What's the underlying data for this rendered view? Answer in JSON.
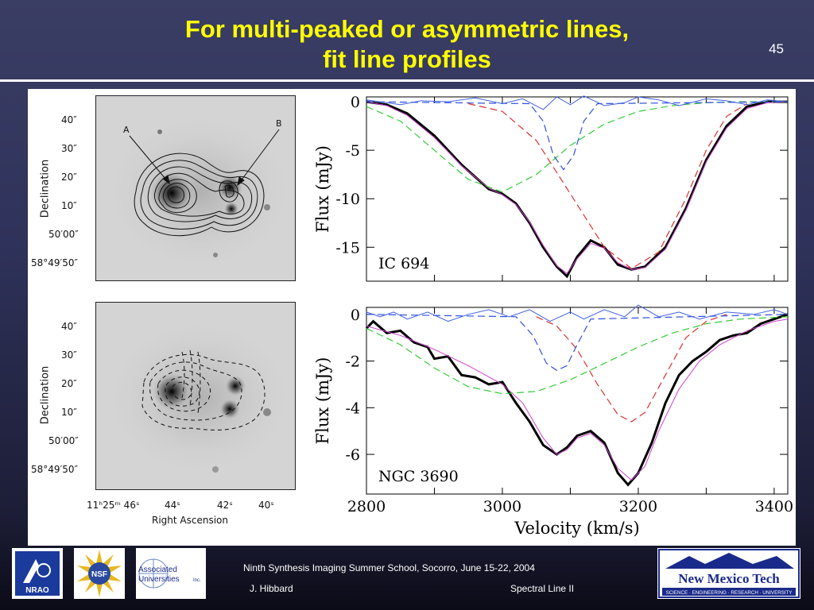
{
  "slide": {
    "title_line1": "For multi-peaked or asymmetric lines,",
    "title_line2": "fit line profiles",
    "slide_number": "45"
  },
  "images": {
    "top": {
      "dec_ticks": [
        "40″",
        "30″",
        "20″",
        "10″",
        "50′00″",
        "58°49′50″"
      ],
      "dec_label": "Declination",
      "marker_a": "A",
      "marker_b": "B"
    },
    "bottom": {
      "dec_ticks": [
        "40″",
        "30″",
        "20″",
        "10″",
        "50′00″",
        "58°49′50″"
      ],
      "dec_label": "Declination",
      "ra_ticks": [
        "11ʰ25ᵐ 46ˢ",
        "44ˢ",
        "42ˢ",
        "40ˢ"
      ],
      "ra_label": "Right Ascension"
    }
  },
  "chart_data": [
    {
      "type": "line",
      "label": "IC 694",
      "ylabel": "Flux (mJy)",
      "xlim": [
        2800,
        3420
      ],
      "ylim": [
        -18.5,
        0.5
      ],
      "yticks": [
        "0",
        "-5",
        "-10",
        "-15"
      ],
      "ytick_values": [
        0,
        -5,
        -10,
        -15
      ],
      "series": [
        {
          "color": "#000000",
          "style": "solid-thick",
          "x": [
            2800,
            2830,
            2860,
            2900,
            2940,
            2980,
            3000,
            3020,
            3040,
            3060,
            3080,
            3095,
            3110,
            3130,
            3150,
            3170,
            3190,
            3210,
            3240,
            3270,
            3300,
            3330,
            3360,
            3390,
            3420
          ],
          "y": [
            0,
            -0.3,
            -1.2,
            -3.5,
            -6.5,
            -9.0,
            -9.5,
            -10.5,
            -12.5,
            -15.0,
            -17.0,
            -18.0,
            -16.0,
            -14.3,
            -15.0,
            -16.8,
            -17.3,
            -17.0,
            -15.0,
            -11.0,
            -6.0,
            -2.5,
            -0.5,
            0,
            0
          ]
        },
        {
          "color": "#cc44cc",
          "style": "solid-thin",
          "x": [
            2800,
            2830,
            2860,
            2900,
            2940,
            2980,
            3000,
            3020,
            3040,
            3060,
            3080,
            3095,
            3110,
            3130,
            3150,
            3170,
            3190,
            3210,
            3240,
            3270,
            3300,
            3330,
            3360,
            3390,
            3420
          ],
          "y": [
            0,
            -0.4,
            -1.4,
            -3.7,
            -6.6,
            -8.9,
            -9.6,
            -10.6,
            -12.4,
            -14.8,
            -16.9,
            -17.7,
            -16.2,
            -14.6,
            -15.1,
            -16.6,
            -17.3,
            -17.1,
            -15.2,
            -11.2,
            -6.2,
            -2.7,
            -0.7,
            -0.1,
            0
          ]
        },
        {
          "color": "#33cc33",
          "style": "dashed",
          "x": [
            2800,
            2850,
            2900,
            2950,
            3000,
            3050,
            3100,
            3150,
            3200,
            3250,
            3300,
            3350,
            3420
          ],
          "y": [
            -0.5,
            -2.0,
            -5.0,
            -8.0,
            -9.3,
            -7.5,
            -4.5,
            -2.3,
            -1.0,
            -0.4,
            -0.1,
            0,
            0
          ]
        },
        {
          "color": "#e03030",
          "style": "dashed",
          "x": [
            2950,
            3000,
            3050,
            3100,
            3150,
            3190,
            3230,
            3270,
            3300,
            3330,
            3360
          ],
          "y": [
            -0.2,
            -1.0,
            -4.0,
            -9.5,
            -15.0,
            -17.2,
            -15.5,
            -10.0,
            -5.0,
            -1.5,
            -0.2
          ]
        },
        {
          "color": "#3050e0",
          "style": "dashed",
          "x": [
            2800,
            3040,
            3060,
            3075,
            3090,
            3105,
            3120,
            3140,
            3420
          ],
          "y": [
            0,
            -0.2,
            -2.0,
            -5.5,
            -7.0,
            -5.5,
            -2.0,
            -0.2,
            0
          ]
        },
        {
          "color": "#4060e0",
          "style": "solid-thin",
          "x": [
            2800,
            2820,
            2850,
            2880,
            2920,
            2960,
            3000,
            3030,
            3060,
            3080,
            3100,
            3120,
            3150,
            3180,
            3200,
            3230,
            3260,
            3300,
            3330,
            3360,
            3390,
            3420
          ],
          "y": [
            0.2,
            0,
            -0.3,
            0.1,
            0,
            0.4,
            -0.2,
            0.3,
            -0.8,
            0.5,
            -0.3,
            0.6,
            -0.4,
            -0.1,
            0.5,
            0.2,
            -0.4,
            0.3,
            0.1,
            -0.3,
            0.2,
            0
          ]
        }
      ]
    },
    {
      "type": "line",
      "label": "NGC 3690",
      "ylabel": "Flux (mJy)",
      "xlabel": "Velocity (km/s)",
      "xlim": [
        2800,
        3420
      ],
      "ylim": [
        -7.7,
        0.3
      ],
      "xticks": [
        "2800",
        "3000",
        "3200",
        "3400"
      ],
      "xtick_values": [
        2800,
        3000,
        3200,
        3400
      ],
      "yticks": [
        "0",
        "-2",
        "-4",
        "-6"
      ],
      "ytick_values": [
        0,
        -2,
        -4,
        -6
      ],
      "series": [
        {
          "color": "#000000",
          "style": "solid-thick",
          "x": [
            2800,
            2810,
            2830,
            2850,
            2870,
            2890,
            2900,
            2920,
            2940,
            2960,
            2980,
            3000,
            3020,
            3040,
            3060,
            3080,
            3095,
            3110,
            3130,
            3150,
            3170,
            3185,
            3200,
            3220,
            3240,
            3260,
            3280,
            3300,
            3320,
            3340,
            3360,
            3380,
            3400,
            3420
          ],
          "y": [
            -0.6,
            -0.3,
            -0.8,
            -0.7,
            -1.2,
            -1.4,
            -1.9,
            -1.8,
            -2.6,
            -2.7,
            -3.0,
            -2.9,
            -3.8,
            -4.6,
            -5.6,
            -6.0,
            -5.7,
            -5.2,
            -5.0,
            -5.5,
            -6.8,
            -7.3,
            -6.8,
            -5.5,
            -3.8,
            -2.6,
            -2.0,
            -1.6,
            -1.1,
            -0.9,
            -0.8,
            -0.4,
            -0.2,
            0
          ]
        },
        {
          "color": "#cc44cc",
          "style": "solid-thin",
          "x": [
            2800,
            2850,
            2900,
            2950,
            3000,
            3030,
            3060,
            3080,
            3095,
            3110,
            3130,
            3150,
            3170,
            3190,
            3210,
            3230,
            3260,
            3290,
            3320,
            3360,
            3400,
            3420
          ],
          "y": [
            -0.5,
            -0.9,
            -1.5,
            -2.2,
            -3.0,
            -3.8,
            -5.3,
            -6.0,
            -5.8,
            -5.3,
            -5.1,
            -5.6,
            -6.6,
            -7.1,
            -6.5,
            -5.0,
            -3.2,
            -2.0,
            -1.3,
            -0.7,
            -0.3,
            -0.2
          ]
        },
        {
          "color": "#33cc33",
          "style": "dashed",
          "x": [
            2800,
            2850,
            2900,
            2950,
            3000,
            3050,
            3100,
            3150,
            3200,
            3250,
            3300,
            3350,
            3420
          ],
          "y": [
            -0.6,
            -1.3,
            -2.3,
            -3.1,
            -3.4,
            -3.3,
            -2.8,
            -2.1,
            -1.4,
            -0.8,
            -0.4,
            -0.2,
            -0.1
          ]
        },
        {
          "color": "#e03030",
          "style": "dashed",
          "x": [
            3050,
            3080,
            3110,
            3140,
            3170,
            3190,
            3210,
            3240,
            3270,
            3300,
            3330
          ],
          "y": [
            -0.1,
            -0.5,
            -1.5,
            -3.0,
            -4.3,
            -4.6,
            -4.2,
            -2.6,
            -1.0,
            -0.3,
            0
          ]
        },
        {
          "color": "#3050e0",
          "style": "dashed",
          "x": [
            2800,
            3020,
            3045,
            3065,
            3080,
            3095,
            3110,
            3130,
            3420
          ],
          "y": [
            0,
            -0.1,
            -0.9,
            -2.1,
            -2.4,
            -2.2,
            -1.3,
            -0.2,
            0
          ]
        },
        {
          "color": "#4060e0",
          "style": "solid-thin",
          "x": [
            2800,
            2820,
            2840,
            2860,
            2890,
            2920,
            2950,
            2980,
            3010,
            3040,
            3070,
            3100,
            3120,
            3150,
            3180,
            3200,
            3230,
            3260,
            3290,
            3330,
            3370,
            3400,
            3420
          ],
          "y": [
            0.1,
            -0.1,
            0.1,
            -0.2,
            0.1,
            -0.3,
            0,
            0.2,
            -0.1,
            0.2,
            -0.3,
            0.1,
            -0.2,
            0.2,
            -0.1,
            0.4,
            -0.1,
            0.1,
            -0.2,
            0.1,
            0,
            0.2,
            0
          ]
        }
      ]
    }
  ],
  "footer": {
    "line1": "Ninth Synthesis Imaging Summer School, Socorro, June 15-22, 2004",
    "author": "J. Hibbard",
    "topic": "Spectral Line II",
    "logo_nrao": "NRAO",
    "logo_nsf": "NSF",
    "logo_aui_line1": "Associated",
    "logo_aui_line2": "Universities",
    "logo_aui_inc": "Inc.",
    "logo_nmt_title": "New Mexico Tech",
    "logo_nmt_tagline": "SCIENCE · ENGINEERING · RESEARCH · UNIVERSITY"
  }
}
